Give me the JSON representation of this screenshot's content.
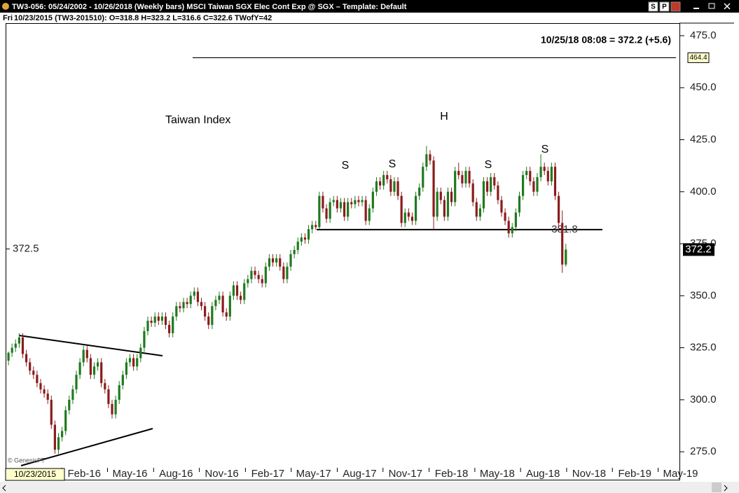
{
  "window": {
    "title": "TW3-056:  05/24/2002 - 10/26/2018  (Weekly bars)   MSCI Taiwan SGX Elec Cont Exp @ SGX  –  Template: Default",
    "buttons": [
      "S",
      "P"
    ]
  },
  "info_line": {
    "day": "Fri",
    "text": "10/23/2015 (TW3-201510):  O=318.8  H=323.2  L=316.6  C=322.6  TWofY=42"
  },
  "chart_data": {
    "type": "candlestick",
    "title": "Taiwan Index",
    "quote": "10/25/18 08:08 = 372.2 (+5.6)",
    "pattern_labels": [
      "S",
      "S",
      "H",
      "S",
      "S"
    ],
    "up_color": "#1f7a1f",
    "down_color": "#8b1c1c",
    "ylim": [
      270,
      476
    ],
    "yticks": [
      {
        "value": 275,
        "label": "275.0"
      },
      {
        "value": 300,
        "label": "300.0"
      },
      {
        "value": 325,
        "label": "325.0"
      },
      {
        "value": 350,
        "label": "350.0"
      },
      {
        "value": 375,
        "label": "375.0"
      },
      {
        "value": 400,
        "label": "400.0"
      },
      {
        "value": 425,
        "label": "425.0"
      },
      {
        "value": 450,
        "label": "450.0"
      },
      {
        "value": 475,
        "label": "475.0"
      }
    ],
    "xlim": [
      -0.8,
      187.8
    ],
    "xticks": [
      {
        "value": 21.2,
        "label": "Feb-16"
      },
      {
        "value": 34,
        "label": "May-16"
      },
      {
        "value": 46.9,
        "label": "Aug-16"
      },
      {
        "value": 59.7,
        "label": "Nov-16"
      },
      {
        "value": 72.6,
        "label": "Feb-17"
      },
      {
        "value": 85.4,
        "label": "May-17"
      },
      {
        "value": 98.3,
        "label": "Aug-17"
      },
      {
        "value": 111.1,
        "label": "Nov-17"
      },
      {
        "value": 124,
        "label": "Feb-18"
      },
      {
        "value": 136.8,
        "label": "May-18"
      },
      {
        "value": 149.6,
        "label": "Aug-18"
      },
      {
        "value": 162.5,
        "label": "Nov-18"
      },
      {
        "value": 175.3,
        "label": "Feb-19"
      },
      {
        "value": 188.1,
        "label": "May-19"
      }
    ],
    "neckline": 381.8,
    "resistance": 464.4,
    "crosshair": {
      "value": 372.5,
      "date": "10/23/2015"
    },
    "copyright": "© GenesisFT",
    "ohlc": [
      [
        318.8,
        323.2,
        316.6,
        322.6
      ],
      [
        322.6,
        327,
        320.6,
        325
      ],
      [
        325,
        329,
        323,
        327
      ],
      [
        327,
        332,
        325,
        330
      ],
      [
        330,
        332,
        320,
        322
      ],
      [
        322,
        324,
        316,
        318
      ],
      [
        318,
        320,
        312,
        314
      ],
      [
        314,
        316,
        310,
        312
      ],
      [
        312,
        314,
        306,
        308
      ],
      [
        308,
        310,
        303,
        305
      ],
      [
        305,
        307,
        301,
        303
      ],
      [
        303,
        305,
        298,
        300
      ],
      [
        300,
        302,
        286,
        288
      ],
      [
        288,
        290,
        274,
        276
      ],
      [
        276,
        284,
        274,
        282
      ],
      [
        282,
        287,
        280,
        285
      ],
      [
        285,
        297,
        283,
        295
      ],
      [
        295,
        302,
        293,
        300
      ],
      [
        300,
        307,
        298,
        305
      ],
      [
        305,
        314,
        303,
        312
      ],
      [
        312,
        320,
        310,
        318
      ],
      [
        318,
        326,
        316,
        324
      ],
      [
        324,
        326,
        318,
        320
      ],
      [
        320,
        322,
        310,
        312
      ],
      [
        312,
        318,
        310,
        316
      ],
      [
        316,
        320,
        314,
        318
      ],
      [
        318,
        320,
        306,
        308
      ],
      [
        308,
        310,
        303,
        305
      ],
      [
        305,
        307,
        296,
        298
      ],
      [
        298,
        300,
        291,
        293
      ],
      [
        293,
        302,
        291,
        300
      ],
      [
        300,
        309,
        298,
        307
      ],
      [
        307,
        314,
        305,
        312
      ],
      [
        312,
        320,
        310,
        318
      ],
      [
        318,
        322,
        316,
        320
      ],
      [
        320,
        322,
        314,
        316
      ],
      [
        316,
        322,
        314,
        320
      ],
      [
        320,
        327,
        318,
        325
      ],
      [
        325,
        335,
        323,
        333
      ],
      [
        333,
        340,
        331,
        338
      ],
      [
        338,
        340,
        335,
        337
      ],
      [
        337,
        342,
        335,
        340
      ],
      [
        340,
        342,
        336,
        338
      ],
      [
        338,
        342,
        336,
        340
      ],
      [
        340,
        342,
        334,
        336
      ],
      [
        336,
        338,
        330,
        332
      ],
      [
        332,
        342,
        330,
        340
      ],
      [
        340,
        347,
        338,
        345
      ],
      [
        345,
        347,
        342,
        344
      ],
      [
        344,
        349,
        342,
        347
      ],
      [
        347,
        349,
        344,
        346
      ],
      [
        346,
        352,
        344,
        350
      ],
      [
        350,
        354,
        348,
        352
      ],
      [
        352,
        354,
        345,
        347
      ],
      [
        347,
        349,
        343,
        345
      ],
      [
        345,
        347,
        338,
        340
      ],
      [
        340,
        342,
        334,
        336
      ],
      [
        336,
        347,
        334,
        345
      ],
      [
        345,
        350,
        343,
        348
      ],
      [
        348,
        352,
        346,
        350
      ],
      [
        350,
        352,
        340,
        342
      ],
      [
        342,
        344,
        338,
        340
      ],
      [
        340,
        352,
        338,
        350
      ],
      [
        350,
        357,
        348,
        355
      ],
      [
        355,
        357,
        348,
        350
      ],
      [
        350,
        352,
        346,
        348
      ],
      [
        348,
        358,
        346,
        356
      ],
      [
        356,
        360,
        354,
        358
      ],
      [
        358,
        364,
        356,
        362
      ],
      [
        362,
        364,
        358,
        360
      ],
      [
        360,
        362,
        356,
        358
      ],
      [
        358,
        360,
        354,
        356
      ],
      [
        356,
        366,
        354,
        364
      ],
      [
        364,
        370,
        362,
        368
      ],
      [
        368,
        370,
        364,
        366
      ],
      [
        366,
        370,
        364,
        368
      ],
      [
        368,
        370,
        362,
        364
      ],
      [
        364,
        366,
        356,
        358
      ],
      [
        358,
        366,
        356,
        364
      ],
      [
        364,
        372,
        362,
        370
      ],
      [
        370,
        374,
        368,
        372
      ],
      [
        372,
        378,
        370,
        376
      ],
      [
        376,
        380,
        374,
        378
      ],
      [
        378,
        380,
        375,
        377
      ],
      [
        377,
        384,
        375,
        382
      ],
      [
        382,
        386,
        380,
        384
      ],
      [
        384,
        386,
        381.8,
        383
      ],
      [
        383,
        400,
        382,
        398
      ],
      [
        398,
        400,
        390,
        392
      ],
      [
        392,
        394,
        385,
        387
      ],
      [
        387,
        397,
        385,
        395
      ],
      [
        395,
        398,
        393,
        396
      ],
      [
        396,
        398,
        390,
        392
      ],
      [
        392,
        397,
        390,
        395
      ],
      [
        395,
        397,
        386,
        388
      ],
      [
        388,
        397,
        386,
        395
      ],
      [
        395,
        397,
        392,
        394
      ],
      [
        394,
        398,
        392,
        396
      ],
      [
        396,
        398,
        393,
        395
      ],
      [
        395,
        398,
        393,
        396
      ],
      [
        396,
        398,
        384,
        386
      ],
      [
        386,
        394,
        384,
        392
      ],
      [
        392,
        402,
        390,
        400
      ],
      [
        400,
        407,
        398,
        405
      ],
      [
        405,
        407,
        401,
        403
      ],
      [
        403,
        410,
        401,
        408
      ],
      [
        408,
        410,
        404,
        406
      ],
      [
        406,
        408,
        398,
        400
      ],
      [
        400,
        407,
        398,
        405
      ],
      [
        405,
        407,
        396,
        398
      ],
      [
        398,
        400,
        383,
        385
      ],
      [
        385,
        392,
        383,
        390
      ],
      [
        390,
        392,
        386,
        388
      ],
      [
        388,
        390,
        384,
        386
      ],
      [
        386,
        400,
        384,
        398
      ],
      [
        398,
        404,
        396,
        402
      ],
      [
        402,
        414,
        400,
        412
      ],
      [
        412,
        422,
        410,
        418
      ],
      [
        418,
        420,
        413,
        415
      ],
      [
        415,
        417,
        382,
        388
      ],
      [
        388,
        402,
        386,
        400
      ],
      [
        400,
        402,
        394,
        396
      ],
      [
        396,
        398,
        386,
        388
      ],
      [
        388,
        402,
        386,
        400
      ],
      [
        400,
        402,
        393,
        395
      ],
      [
        395,
        412,
        393,
        410
      ],
      [
        410,
        414,
        406,
        408
      ],
      [
        408,
        410,
        402,
        404
      ],
      [
        404,
        412,
        402,
        410
      ],
      [
        410,
        412,
        402,
        404
      ],
      [
        404,
        406,
        393,
        395
      ],
      [
        395,
        397,
        386,
        388
      ],
      [
        388,
        394,
        386,
        392
      ],
      [
        392,
        407,
        390,
        405
      ],
      [
        405,
        407,
        398,
        400
      ],
      [
        400,
        409,
        398,
        407
      ],
      [
        407,
        409,
        401,
        403
      ],
      [
        403,
        405,
        394,
        396
      ],
      [
        396,
        398,
        388,
        390
      ],
      [
        390,
        392,
        384,
        386
      ],
      [
        386,
        388,
        378,
        380
      ],
      [
        380,
        385,
        378,
        383
      ],
      [
        383,
        392,
        381,
        390
      ],
      [
        390,
        400,
        388,
        398
      ],
      [
        398,
        410,
        396,
        408
      ],
      [
        408,
        412,
        406,
        410
      ],
      [
        410,
        412,
        403,
        405
      ],
      [
        405,
        407,
        398,
        400
      ],
      [
        400,
        409,
        398,
        407
      ],
      [
        407,
        418,
        405,
        412
      ],
      [
        412,
        414,
        408,
        410
      ],
      [
        410,
        412,
        403,
        405
      ],
      [
        405,
        414,
        403,
        412
      ],
      [
        412,
        414,
        396,
        398
      ],
      [
        398,
        400,
        383,
        385
      ],
      [
        385,
        391,
        361,
        365
      ],
      [
        365,
        375,
        364,
        372.2
      ]
    ]
  }
}
